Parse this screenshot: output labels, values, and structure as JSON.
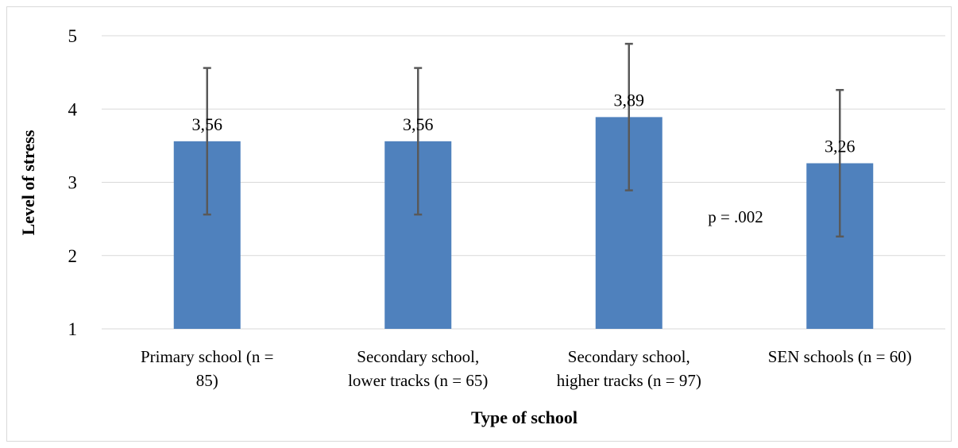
{
  "chart_data": {
    "type": "bar",
    "title": "",
    "xlabel": "Type of school",
    "ylabel": "Level of stress",
    "ylim": [
      1,
      5
    ],
    "yticks": [
      "1",
      "2",
      "3",
      "4",
      "5"
    ],
    "grid": true,
    "categories": [
      [
        "Primary school (n =",
        "85)"
      ],
      [
        "Secondary school,",
        "lower tracks (n = 65)"
      ],
      [
        "Secondary school,",
        "higher tracks (n = 97)"
      ],
      [
        "SEN schools (n = 60)"
      ]
    ],
    "values": [
      3.56,
      3.56,
      3.89,
      3.26
    ],
    "data_labels": [
      "3,56",
      "3,56",
      "3,89",
      "3,26"
    ],
    "error_bars": [
      1.0,
      1.0,
      1.0,
      1.0
    ],
    "annotation": "p = .002",
    "colors": {
      "bar": "#4f81bd",
      "error_bar": "#595959",
      "grid": "#d9d9d9"
    }
  }
}
